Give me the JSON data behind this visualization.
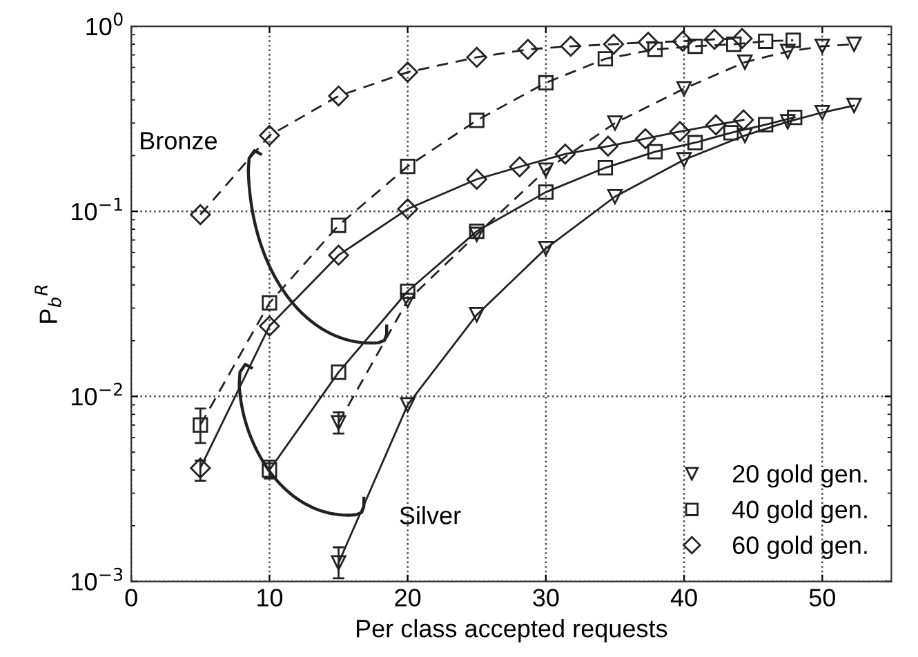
{
  "chart_data": {
    "type": "line",
    "xlabel": "Per class accepted requests",
    "ylabel": "P$_{b}$$^{R}$",
    "log": "y",
    "xlim": [
      0,
      55
    ],
    "xticks": [
      0,
      10,
      20,
      30,
      40,
      50
    ],
    "ylim": [
      0.001,
      1
    ],
    "yticks": [
      {
        "value": 0.001,
        "label": "10$^{−3}$"
      },
      {
        "value": 0.01,
        "label": "10$^{−2}$"
      },
      {
        "value": 0.1,
        "label": "10$^{−1}$"
      },
      {
        "value": 1,
        "label": "10$^{0}$"
      }
    ],
    "grid": true,
    "legend": "bottom right",
    "annotations": [
      "Bronze",
      "Silver"
    ],
    "series": [
      {
        "name": "20 gold gen.",
        "color": "#222222",
        "marker": "triangle",
        "line_style": "dashed",
        "x": [
          15,
          20,
          25,
          30,
          35,
          40,
          44.4,
          47.5,
          50,
          52.3
        ],
        "values": [
          0.0072,
          0.033,
          0.075,
          0.167,
          0.3,
          0.46,
          0.64,
          0.73,
          0.78,
          0.8
        ],
        "errors": [
          [
            0.0063,
            0.0082
          ],
          null,
          null,
          null,
          null,
          null,
          null,
          null,
          null,
          null
        ]
      },
      {
        "name": "40 gold gen.",
        "color": "#222222",
        "marker": "square",
        "line_style": "dashed",
        "x": [
          5,
          10,
          15,
          20,
          25,
          30,
          34.3,
          37.9,
          40.8,
          43.6,
          45.9,
          47.9
        ],
        "values": [
          0.007,
          0.032,
          0.084,
          0.175,
          0.31,
          0.495,
          0.667,
          0.75,
          0.78,
          0.8,
          0.83,
          0.84
        ],
        "errors": [
          [
            0.0056,
            0.0086
          ],
          null,
          null,
          null,
          null,
          null,
          null,
          null,
          null,
          null,
          null,
          null
        ]
      },
      {
        "name": "60 gold gen.",
        "color": "#222222",
        "marker": "diamond",
        "line_style": "dashed",
        "x": [
          5,
          10,
          15,
          20,
          25,
          28.7,
          31.8,
          34.9,
          37.4,
          39.9,
          42.2,
          44.2
        ],
        "values": [
          0.096,
          0.257,
          0.42,
          0.565,
          0.68,
          0.75,
          0.78,
          0.8,
          0.82,
          0.83,
          0.85,
          0.86
        ]
      },
      {
        "color": "#222222",
        "marker": "triangle",
        "line_style": "solid",
        "x": [
          15,
          20,
          25,
          30,
          35,
          40,
          44.4,
          47.5,
          50,
          52.3
        ],
        "values": [
          0.00126,
          0.009,
          0.0276,
          0.063,
          0.12,
          0.19,
          0.257,
          0.305,
          0.342,
          0.373
        ],
        "errors": [
          [
            0.00104,
            0.00153
          ],
          null,
          null,
          null,
          null,
          null,
          null,
          null,
          null,
          null
        ]
      },
      {
        "color": "#222222",
        "marker": "square",
        "line_style": "solid",
        "x": [
          10,
          15,
          20,
          25,
          30,
          34.3,
          37.9,
          40.8,
          43.4,
          45.9,
          48
        ],
        "values": [
          0.004,
          0.0135,
          0.037,
          0.078,
          0.127,
          0.172,
          0.21,
          0.235,
          0.266,
          0.294,
          0.322
        ],
        "errors": [
          [
            0.0036,
            0.0045
          ],
          null,
          null,
          null,
          null,
          null,
          null,
          null,
          null,
          null,
          null
        ]
      },
      {
        "color": "#222222",
        "marker": "diamond",
        "line_style": "solid",
        "x": [
          5,
          10,
          15,
          20,
          25,
          28.1,
          31.4,
          34.5,
          37.2,
          39.7,
          42.3,
          44.3
        ],
        "values": [
          0.0041,
          0.024,
          0.058,
          0.103,
          0.149,
          0.174,
          0.204,
          0.225,
          0.247,
          0.27,
          0.293,
          0.312
        ],
        "errors": [
          [
            0.0035,
            0.0045
          ],
          null,
          null,
          null,
          null,
          null,
          null,
          null,
          null,
          null,
          null,
          null
        ]
      }
    ]
  }
}
